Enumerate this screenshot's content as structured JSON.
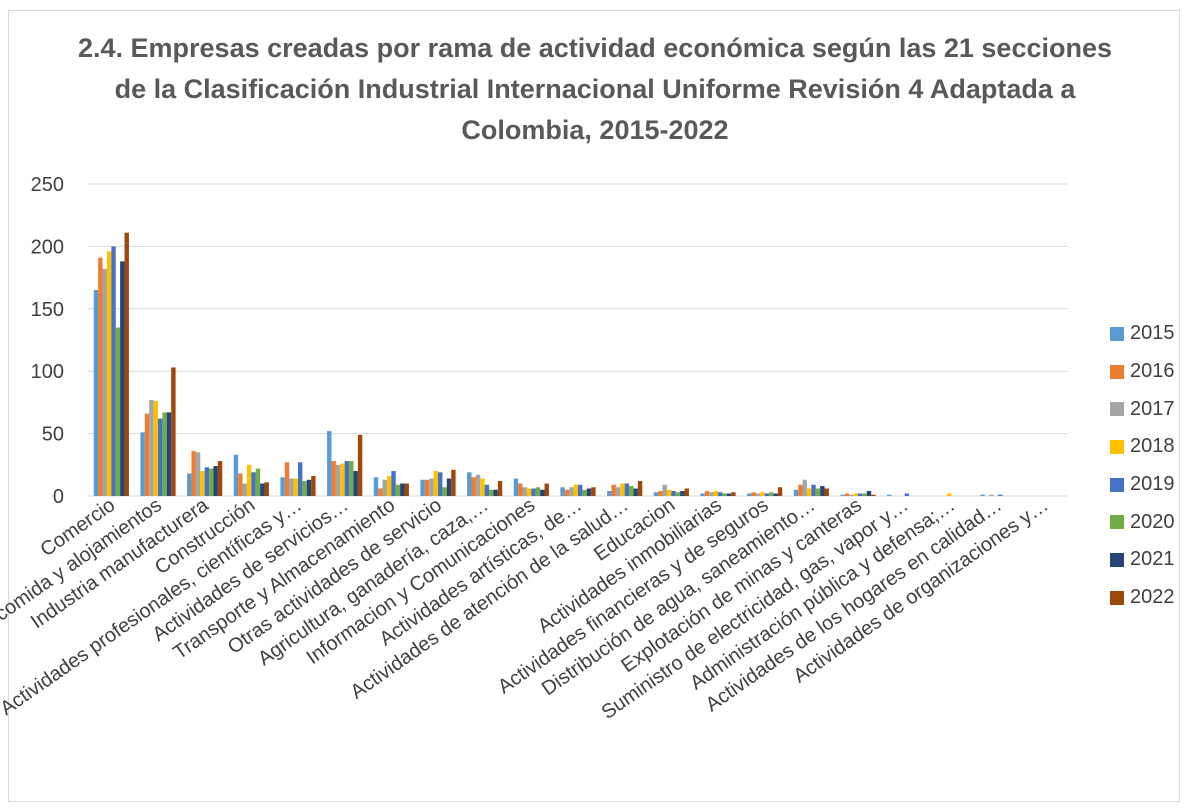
{
  "chart_data": {
    "type": "bar",
    "title": "2.4. Empresas creadas por rama de actividad económica según las 21 secciones de la Clasificación Industrial Internacional Uniforme Revisión 4 Adaptada a Colombia, 2015-2022",
    "xlabel": "",
    "ylabel": "",
    "ylim": [
      0,
      250
    ],
    "yticks": [
      "0",
      "50",
      "100",
      "150",
      "200",
      "250"
    ],
    "grid": true,
    "legend_position": "right",
    "categories": [
      "Comercio",
      "Servicios de comida y alojamientos",
      "Industria manufacturera",
      "Construcción",
      "Actividades profesionales, científicas y…",
      "Actividades de servicios…",
      "Transporte y Almacenamiento",
      "Otras actividades de servicio",
      "Agricultura, ganadería, caza,…",
      "Informacion y Comunicaciones",
      "Actividades artísticas, de…",
      "Actividades de atención de la salud…",
      "Educacion",
      "Actividades inmobiliarias",
      "Actividades financieras y de seguros",
      "Distribución de agua, saneamiento…",
      "Explotación de minas y canteras",
      "Suministro de electricidad, gas, vapor y…",
      "Administración pública y defensa;…",
      "Actividades de los hogares en calidad…",
      "Actividades de organizaciones y…"
    ],
    "series": [
      {
        "name": "2015",
        "color": "#5b9bd5",
        "values": [
          165,
          51,
          18,
          33,
          15,
          52,
          15,
          13,
          19,
          14,
          7,
          4,
          3,
          2,
          2,
          5,
          1,
          1,
          0,
          1,
          0
        ]
      },
      {
        "name": "2016",
        "color": "#ed7d31",
        "values": [
          191,
          66,
          36,
          18,
          27,
          28,
          6,
          13,
          15,
          10,
          5,
          9,
          4,
          4,
          3,
          9,
          2,
          0,
          0,
          0,
          0
        ]
      },
      {
        "name": "2017",
        "color": "#a5a5a5",
        "values": [
          182,
          77,
          35,
          10,
          14,
          25,
          13,
          14,
          17,
          7,
          7,
          7,
          9,
          3,
          2,
          13,
          1,
          0,
          0,
          1,
          0
        ]
      },
      {
        "name": "2018",
        "color": "#ffc000",
        "values": [
          196,
          76,
          20,
          25,
          14,
          26,
          16,
          20,
          14,
          6,
          9,
          10,
          5,
          4,
          3,
          6,
          2,
          0,
          2,
          0,
          0
        ]
      },
      {
        "name": "2019",
        "color": "#4472c4",
        "values": [
          200,
          62,
          23,
          19,
          27,
          28,
          20,
          19,
          9,
          6,
          9,
          10,
          4,
          3,
          2,
          9,
          2,
          2,
          0,
          1,
          0
        ]
      },
      {
        "name": "2020",
        "color": "#70ad47",
        "values": [
          135,
          67,
          22,
          22,
          12,
          28,
          9,
          7,
          5,
          7,
          5,
          8,
          3,
          2,
          3,
          6,
          2,
          0,
          0,
          0,
          0
        ]
      },
      {
        "name": "2021",
        "color": "#264478",
        "values": [
          188,
          67,
          24,
          10,
          13,
          20,
          10,
          14,
          5,
          5,
          6,
          6,
          4,
          2,
          2,
          8,
          4,
          0,
          0,
          0,
          0
        ]
      },
      {
        "name": "2022",
        "color": "#9e480e",
        "values": [
          211,
          103,
          28,
          11,
          16,
          49,
          10,
          21,
          12,
          10,
          7,
          12,
          6,
          3,
          7,
          6,
          1,
          0,
          0,
          0,
          0
        ]
      }
    ]
  }
}
